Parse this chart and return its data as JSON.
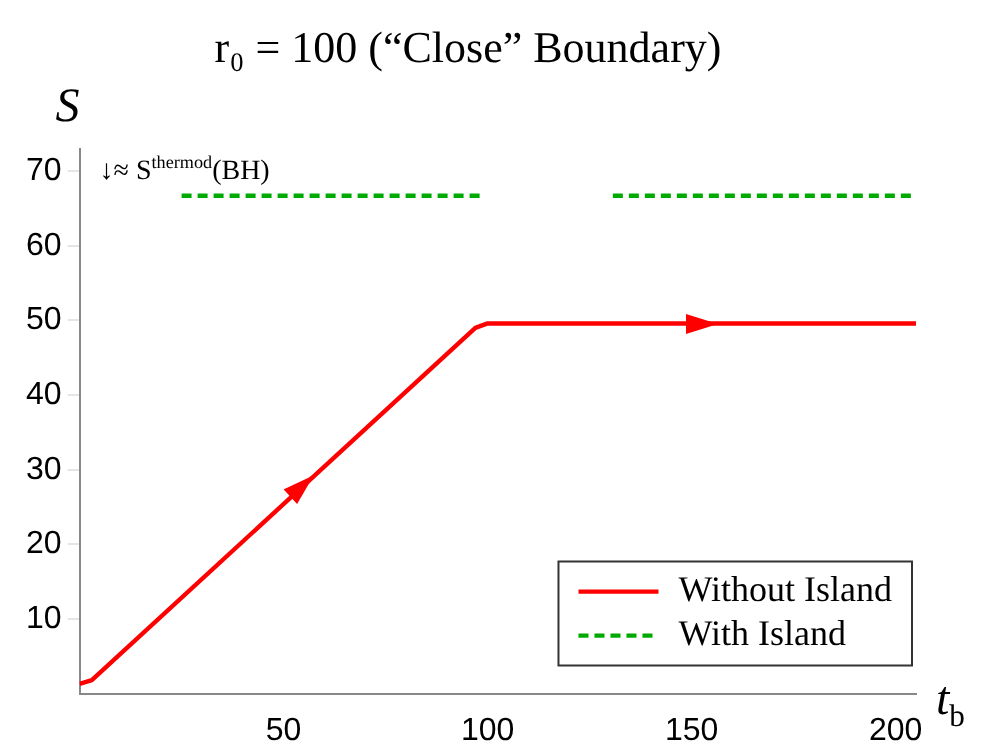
{
  "chart_data": {
    "type": "line",
    "title": "r₀ = 100 (“Close” Boundary)",
    "xlabel": "t$_{b}$",
    "ylabel": "S",
    "xlim": [
      0,
      205
    ],
    "xticks": [
      50,
      100,
      150,
      200
    ],
    "ylim": [
      0,
      73
    ],
    "yticks": [
      10,
      20,
      30,
      40,
      50,
      60,
      70
    ],
    "grid": false,
    "legend": "bottom right",
    "marker": "none",
    "series": [
      {
        "name": "Without Island",
        "color": "#ff0000",
        "line_style": "solid",
        "x": [
          0,
          3,
          97,
          100,
          205
        ],
        "values": [
          1.3,
          1.8,
          49,
          49.6,
          49.6
        ]
      },
      {
        "name": "With Island",
        "color": "#00aa00",
        "line_style": "dashed",
        "x": [
          25,
          98.4,
          115,
          130.7,
          205
        ],
        "values": [
          66.7,
          66.7,
          null,
          66.7,
          66.7
        ]
      }
    ],
    "annotations": [
      "↓≈ S$^{thermod}$(BH)"
    ]
  }
}
